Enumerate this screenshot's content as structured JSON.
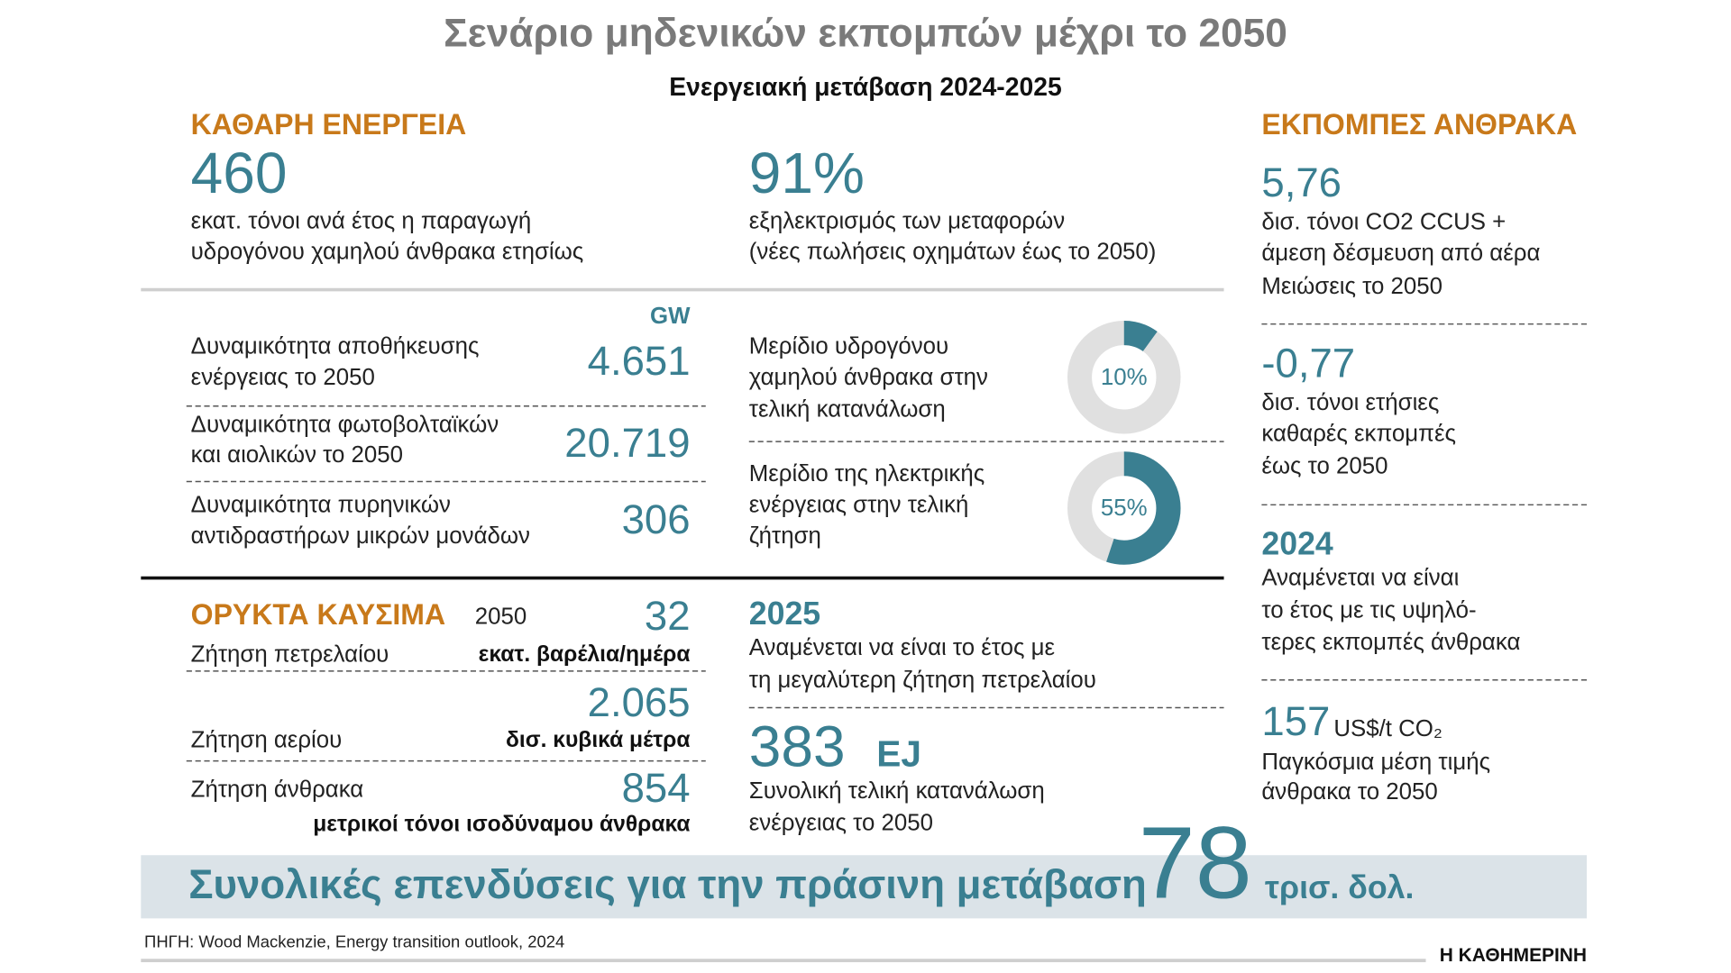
{
  "header": {
    "title": "Σενάριο μηδενικών εκπομπών μέχρι το 2050",
    "subtitle": "Ενεργειακή μετάβαση 2024-2025"
  },
  "clean_energy": {
    "heading": "ΚΑΘΑΡΗ ΕΝΕΡΓΕΙΑ",
    "hydrogen": {
      "value": "460",
      "lines": [
        "εκατ. τόνοι ανά έτος η παραγωγή",
        "υδρογόνου χαμηλού άνθρακα ετησίως"
      ]
    },
    "electrification": {
      "value": "91%",
      "lines": [
        "εξηλεκτρισμός των μεταφορών",
        "(νέες πωλήσεις οχημάτων έως το 2050)"
      ]
    },
    "unit": "GW",
    "capacities": [
      {
        "lines": [
          "Δυναμικότητα αποθήκευσης",
          "ενέργειας το 2050"
        ],
        "value": "4.651"
      },
      {
        "lines": [
          "Δυναμικότητα φωτοβολταϊκών",
          "και αιολικών το 2050"
        ],
        "value": "20.719"
      },
      {
        "lines": [
          "Δυναμικότητα πυρηνικών",
          "αντιδραστήρων μικρών μονάδων"
        ],
        "value": "306"
      }
    ],
    "shares": [
      {
        "lines": [
          "Μερίδιο υδρογόνου",
          "χαμηλού άνθρακα στην",
          "τελική κατανάλωση"
        ],
        "value": 10,
        "value_label": "10%"
      },
      {
        "lines": [
          "Μερίδιο της ηλεκτρικής",
          "ενέργειας στην τελική",
          "ζήτηση"
        ],
        "value": 55,
        "value_label": "55%"
      }
    ]
  },
  "fossil_fuels": {
    "heading": "ΟΡΥΚΤΑ ΚΑΥΣΙΜΑ",
    "year": "2050",
    "items": [
      {
        "label": "Ζήτηση πετρελαίου",
        "value": "32",
        "unit": "εκατ. βαρέλια/ημέρα"
      },
      {
        "label": "Ζήτηση αερίου",
        "value": "2.065",
        "unit": "δισ. κυβικά μέτρα"
      },
      {
        "label": "Ζήτηση άνθρακα",
        "value": "854",
        "unit": "μετρικοί τόνοι ισοδύναμου άνθρακα"
      }
    ]
  },
  "oil_peak": {
    "year": "2025",
    "lines": [
      "Αναμένεται να είναι το έτος με",
      "τη μεγαλύτερη ζήτηση πετρελαίου"
    ]
  },
  "final_consumption": {
    "value": "383",
    "unit": "EJ",
    "lines": [
      "Συνολική τελική κατανάλωση",
      "ενέργειας το 2050"
    ]
  },
  "carbon_emissions": {
    "heading": "ΕΚΠΟΜΠΕΣ ΑΝΘΡΑΚΑ",
    "ccus": {
      "value": "5,76",
      "lines": [
        "δισ. τόνοι CO2 CCUS +",
        "άμεση δέσμευση από αέρα",
        "Μειώσεις το 2050"
      ]
    },
    "net": {
      "value": "-0,77",
      "lines": [
        "δισ. τόνοι ετήσιες",
        "καθαρές εκπομπές",
        "έως το 2050"
      ]
    },
    "peak": {
      "year": "2024",
      "lines": [
        "Αναμένεται να είναι",
        "το έτος με τις υψηλό-",
        "τερες εκπομπές άνθρακα"
      ]
    },
    "price": {
      "value": "157",
      "unit": "US$/t CO₂",
      "lines": [
        "Παγκόσμια μέση τιμής",
        "άνθρακα το 2050"
      ]
    }
  },
  "investment": {
    "label": "Συνολικές επενδύσεις για την πράσινη μετάβαση",
    "value": "78",
    "unit": "τρισ. δολ."
  },
  "footer": {
    "source": "ΠΗΓΗ: Wood Mackenzie, Energy transition outlook, 2024",
    "brand": "Η ΚΑΘΗΜΕΡΙΝΗ"
  }
}
